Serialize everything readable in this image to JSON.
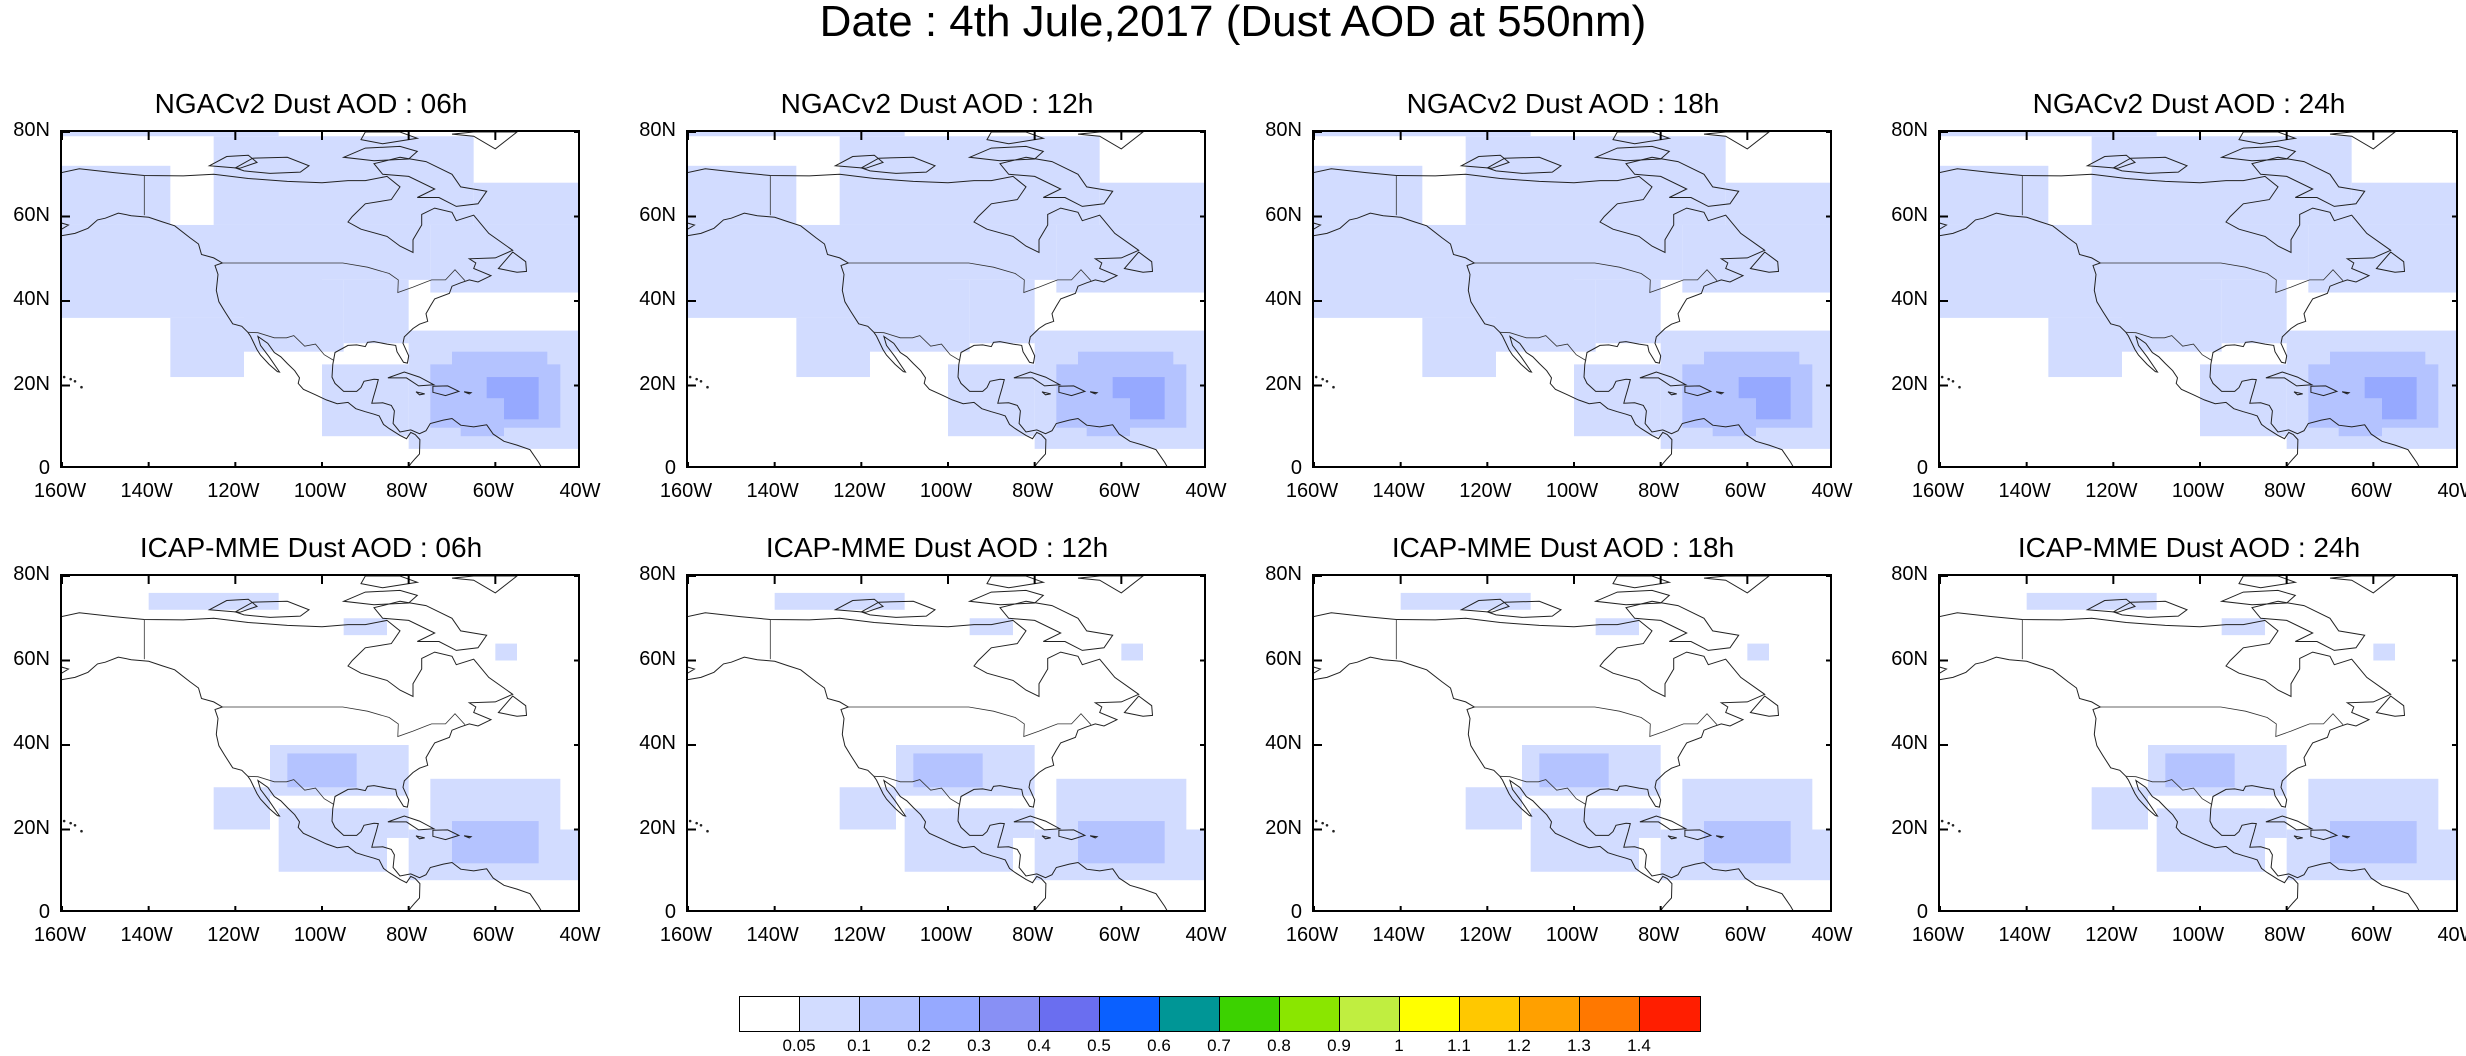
{
  "title": "Date : 4th Jule,2017 (Dust AOD at 550nm)",
  "lat_labels": [
    "80N",
    "60N",
    "40N",
    "20N",
    "0"
  ],
  "lon_labels": [
    "160W",
    "140W",
    "120W",
    "100W",
    "80W",
    "60W",
    "40W"
  ],
  "map_extent": {
    "lon": [
      -160,
      -40
    ],
    "lat": [
      0,
      80
    ]
  },
  "panels": [
    {
      "title": "NGACv2 Dust AOD : 06h",
      "model": "NGACv2",
      "hour": 6
    },
    {
      "title": "NGACv2 Dust AOD : 12h",
      "model": "NGACv2",
      "hour": 12
    },
    {
      "title": "NGACv2 Dust AOD : 18h",
      "model": "NGACv2",
      "hour": 18
    },
    {
      "title": "NGACv2 Dust AOD : 24h",
      "model": "NGACv2",
      "hour": 24
    },
    {
      "title": "ICAP-MME Dust AOD : 06h",
      "model": "ICAP-MME",
      "hour": 6
    },
    {
      "title": "ICAP-MME Dust AOD : 12h",
      "model": "ICAP-MME",
      "hour": 12
    },
    {
      "title": "ICAP-MME Dust AOD : 18h",
      "model": "ICAP-MME",
      "hour": 18
    },
    {
      "title": "ICAP-MME Dust AOD : 24h",
      "model": "ICAP-MME",
      "hour": 24
    }
  ],
  "colorbar": {
    "labels": [
      "0.05",
      "0.1",
      "0.2",
      "0.3",
      "0.4",
      "0.5",
      "0.6",
      "0.7",
      "0.8",
      "0.9",
      "1",
      "1.1",
      "1.2",
      "1.3",
      "1.4"
    ],
    "colors": [
      "#ffffff",
      "#d2dcff",
      "#b4c3ff",
      "#96a9ff",
      "#8890f5",
      "#6a6ef0",
      "#0a60ff",
      "#009696",
      "#3cd200",
      "#8ae600",
      "#c0ee40",
      "#ffff00",
      "#ffc800",
      "#ffa000",
      "#ff7800",
      "#ff1e00"
    ]
  }
}
